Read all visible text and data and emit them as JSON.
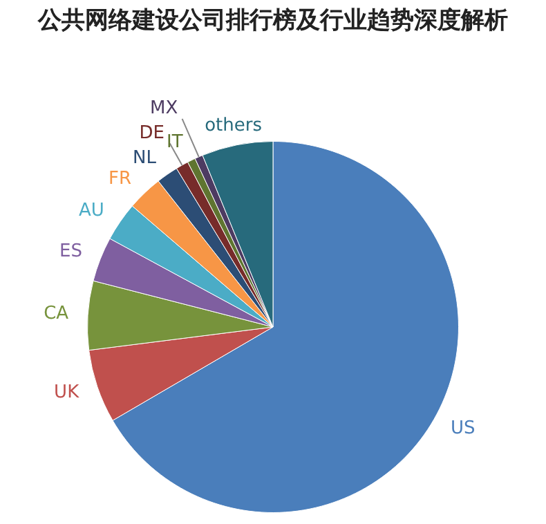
{
  "chart_data": {
    "type": "pie",
    "title": "公共网络建设公司排行榜及行业趋势深度解析",
    "categories": [
      "US",
      "UK",
      "CA",
      "ES",
      "AU",
      "FR",
      "NL",
      "DE",
      "IT",
      "MX",
      "others"
    ],
    "values": [
      66.6,
      6.4,
      6,
      3.9,
      3.4,
      3.1,
      1.9,
      1.1,
      0.7,
      0.7,
      6.2
    ],
    "colors": [
      "#4a7ebb",
      "#c0504d",
      "#77933c",
      "#7f5fa0",
      "#4bacc6",
      "#f79646",
      "#2c4d75",
      "#772c2a",
      "#5f7530",
      "#4d3b62",
      "#276a7c"
    ],
    "legend": false
  }
}
